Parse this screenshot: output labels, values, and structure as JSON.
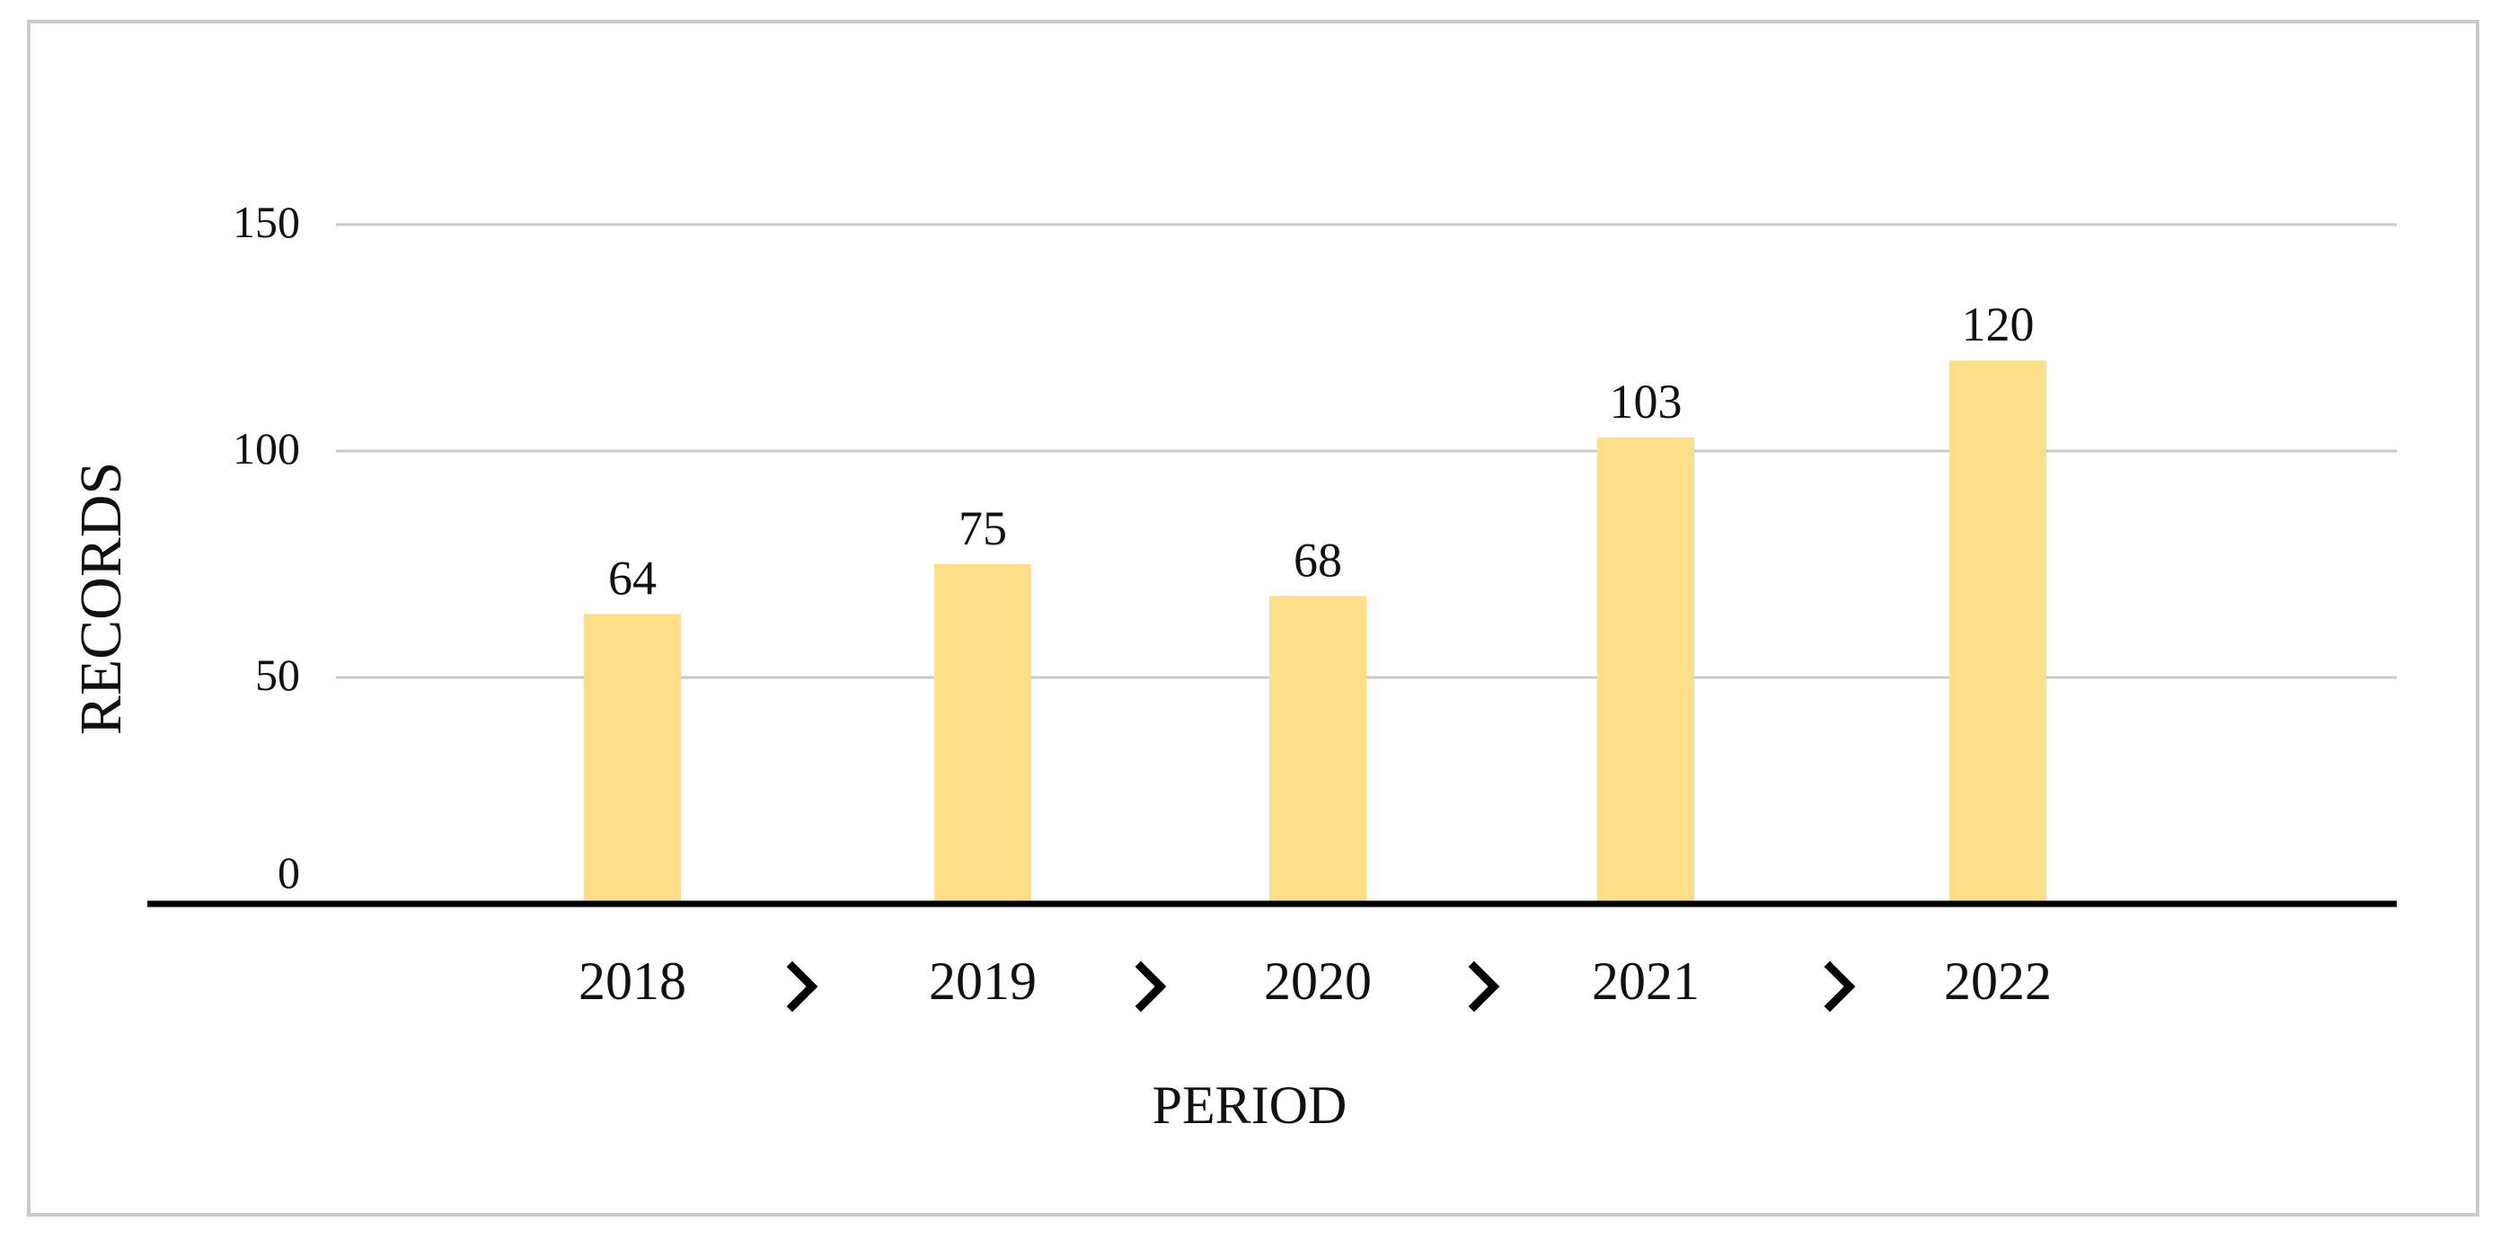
{
  "chart_data": {
    "type": "bar",
    "categories": [
      "2018",
      "2019",
      "2020",
      "2021",
      "2022"
    ],
    "values": [
      64,
      75,
      68,
      103,
      120
    ],
    "title": "",
    "xlabel": "PERIOD",
    "ylabel": "RECORDS",
    "ylim": [
      0,
      150
    ],
    "yticks": [
      0,
      50,
      100,
      150
    ],
    "grid": true,
    "legend": "none",
    "category_separator_icon": "chevron-right-icon",
    "colors": {
      "bar": "#FFDE8A",
      "grid": "#c8c8c8",
      "axis": "#000000",
      "frame": "#c9c9c9"
    }
  }
}
